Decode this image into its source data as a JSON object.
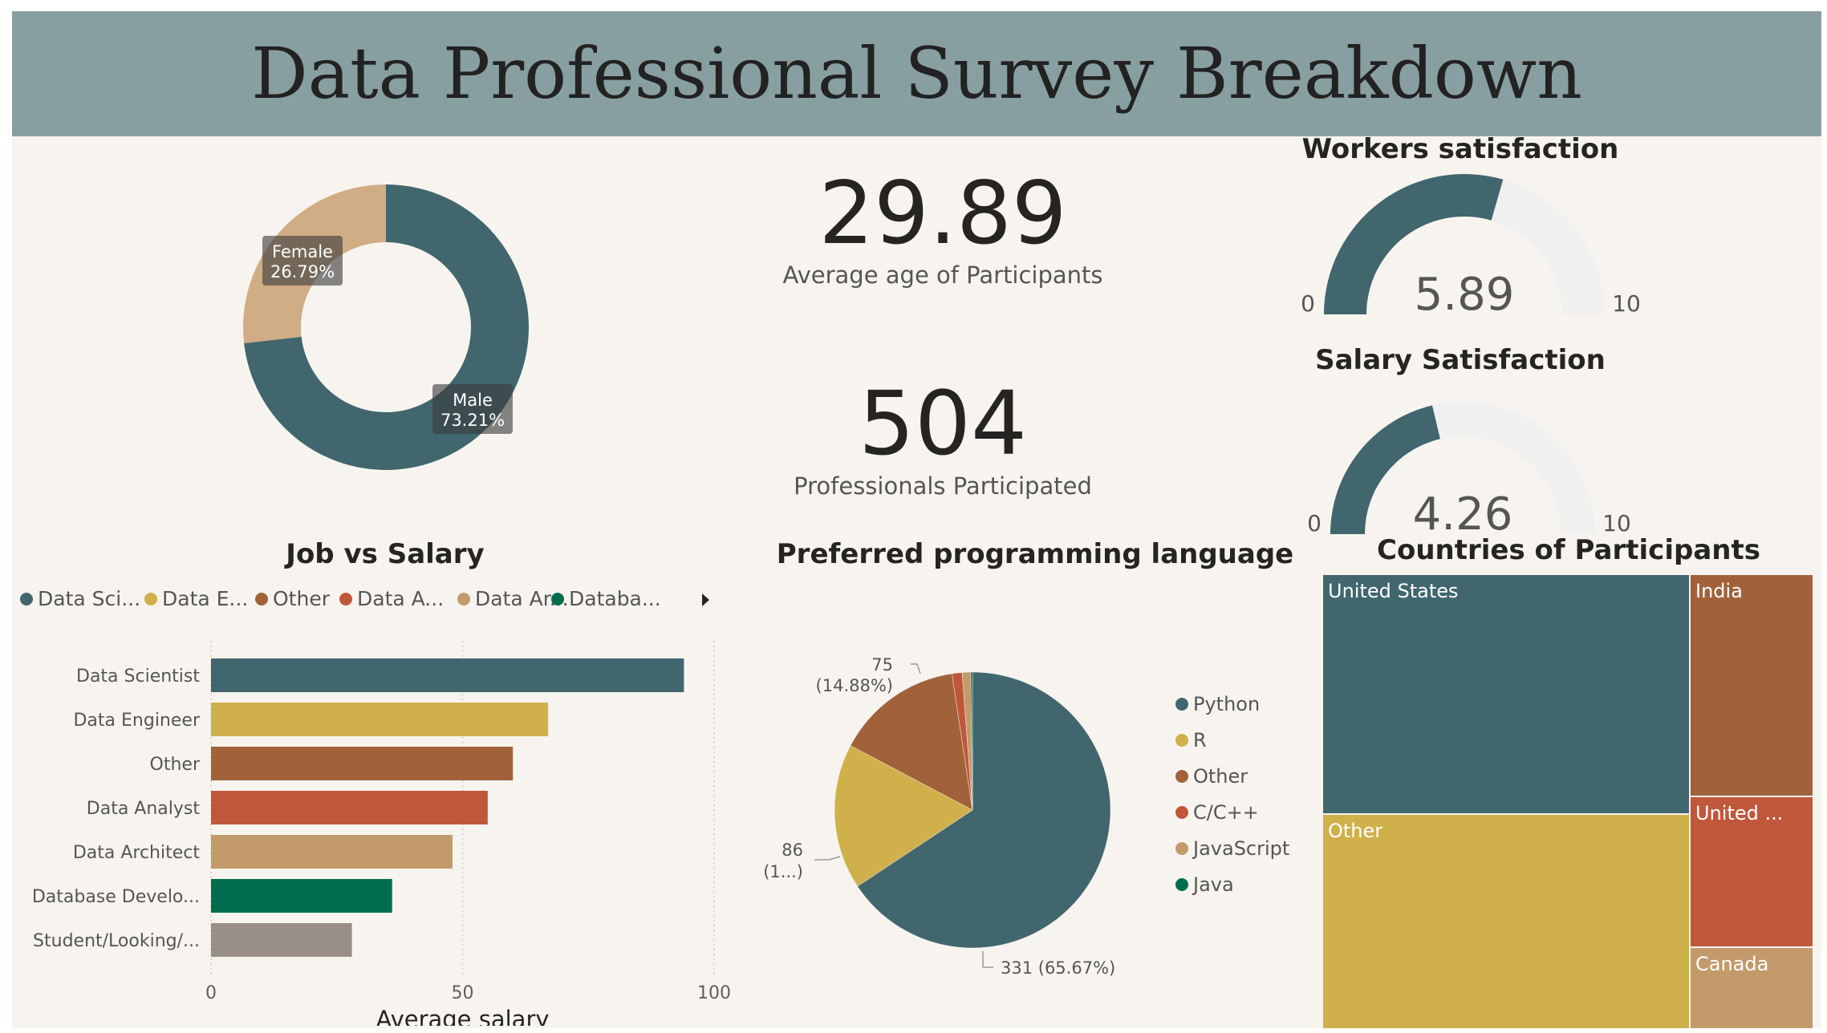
{
  "title": "Data Professional Survey Breakdown",
  "colors": {
    "slate": "#41666e",
    "gold": "#d0b04a",
    "brown": "#a1623a",
    "orange": "#c0573b",
    "tan": "#c39a6a",
    "green": "#006e4e",
    "gray": "#9a8f86",
    "gauge_track": "#f0f0f0",
    "banner": "#889fa1",
    "background": "#f7f4ef"
  },
  "kpis": {
    "age": {
      "value": "29.89",
      "label": "Average age of Participants"
    },
    "participants": {
      "value": "504",
      "label": "Professionals Participated"
    }
  },
  "gender_donut": {
    "type": "pie",
    "slices": [
      {
        "label": "Male",
        "percent": 73.21,
        "display": "73.21%",
        "color": "#41666e"
      },
      {
        "label": "Female",
        "percent": 26.79,
        "display": "26.79%",
        "color": "#d0ad84"
      }
    ]
  },
  "gauges": {
    "workers": {
      "title": "Workers satisfaction",
      "value": 5.89,
      "display": "5.89",
      "min": 0,
      "max": 10,
      "min_label": "0",
      "max_label": "10"
    },
    "salary": {
      "title": "Salary Satisfaction",
      "value": 4.26,
      "display": "4.26",
      "min": 0,
      "max": 10,
      "min_label": "0",
      "max_label": "10"
    }
  },
  "job_salary": {
    "title": "Job vs Salary",
    "legend": [
      {
        "label": "Data Sci...",
        "color": "#41666e"
      },
      {
        "label": "Data E...",
        "color": "#d0b04a"
      },
      {
        "label": "Other",
        "color": "#a1623a"
      },
      {
        "label": "Data A...",
        "color": "#c0573b"
      },
      {
        "label": "Data Ar...",
        "color": "#c39a6a"
      },
      {
        "label": "Databa...",
        "color": "#006e4e"
      }
    ]
  },
  "languages": {
    "title": "Preferred programming language",
    "labels": {
      "python": "331 (65.67%)",
      "other_count": "75",
      "other_pct": "(14.88%)",
      "r_count": "86",
      "r_pct": "(1...)"
    },
    "legend": [
      {
        "label": "Python",
        "color": "#41666e"
      },
      {
        "label": "R",
        "color": "#d0b04a"
      },
      {
        "label": "Other",
        "color": "#a1623a"
      },
      {
        "label": "C/C++",
        "color": "#c0573b"
      },
      {
        "label": "JavaScript",
        "color": "#c39a6a"
      },
      {
        "label": "Java",
        "color": "#006e4e"
      }
    ]
  },
  "countries": {
    "title": "Countries of Participants",
    "items": [
      {
        "label": "United States",
        "color": "#41666e"
      },
      {
        "label": "Other",
        "color": "#d0b04a"
      },
      {
        "label": "India",
        "color": "#a1623a"
      },
      {
        "label": "United ...",
        "color": "#c0573b"
      },
      {
        "label": "Canada",
        "color": "#c39a6a"
      }
    ]
  },
  "chart_data": [
    {
      "type": "pie",
      "categories": [
        "Male",
        "Female"
      ],
      "values": [
        73.21,
        26.79
      ]
    },
    {
      "type": "bar",
      "title": "Job vs Salary",
      "orientation": "horizontal",
      "categories": [
        "Data Scientist",
        "Data Engineer",
        "Other",
        "Data Analyst",
        "Data Architect",
        "Database Develo...",
        "Student/Looking/..."
      ],
      "values": [
        94,
        67,
        60,
        55,
        48,
        36,
        28
      ],
      "xlabel": "Average salary",
      "ylabel": "",
      "xlim": [
        0,
        100
      ],
      "xticks": [
        "0",
        "50",
        "100"
      ],
      "grid": true
    },
    {
      "type": "pie",
      "title": "Preferred programming language",
      "categories": [
        "Python",
        "R",
        "Other",
        "C/C++",
        "JavaScript",
        "Java"
      ],
      "values": [
        331,
        86,
        75,
        6,
        5,
        1
      ]
    },
    {
      "type": "table",
      "title": "Countries of Participants",
      "categories": [
        "United States",
        "Other",
        "India",
        "United ...",
        "Canada"
      ],
      "values": [
        199,
        178,
        62,
        42,
        23
      ]
    }
  ]
}
